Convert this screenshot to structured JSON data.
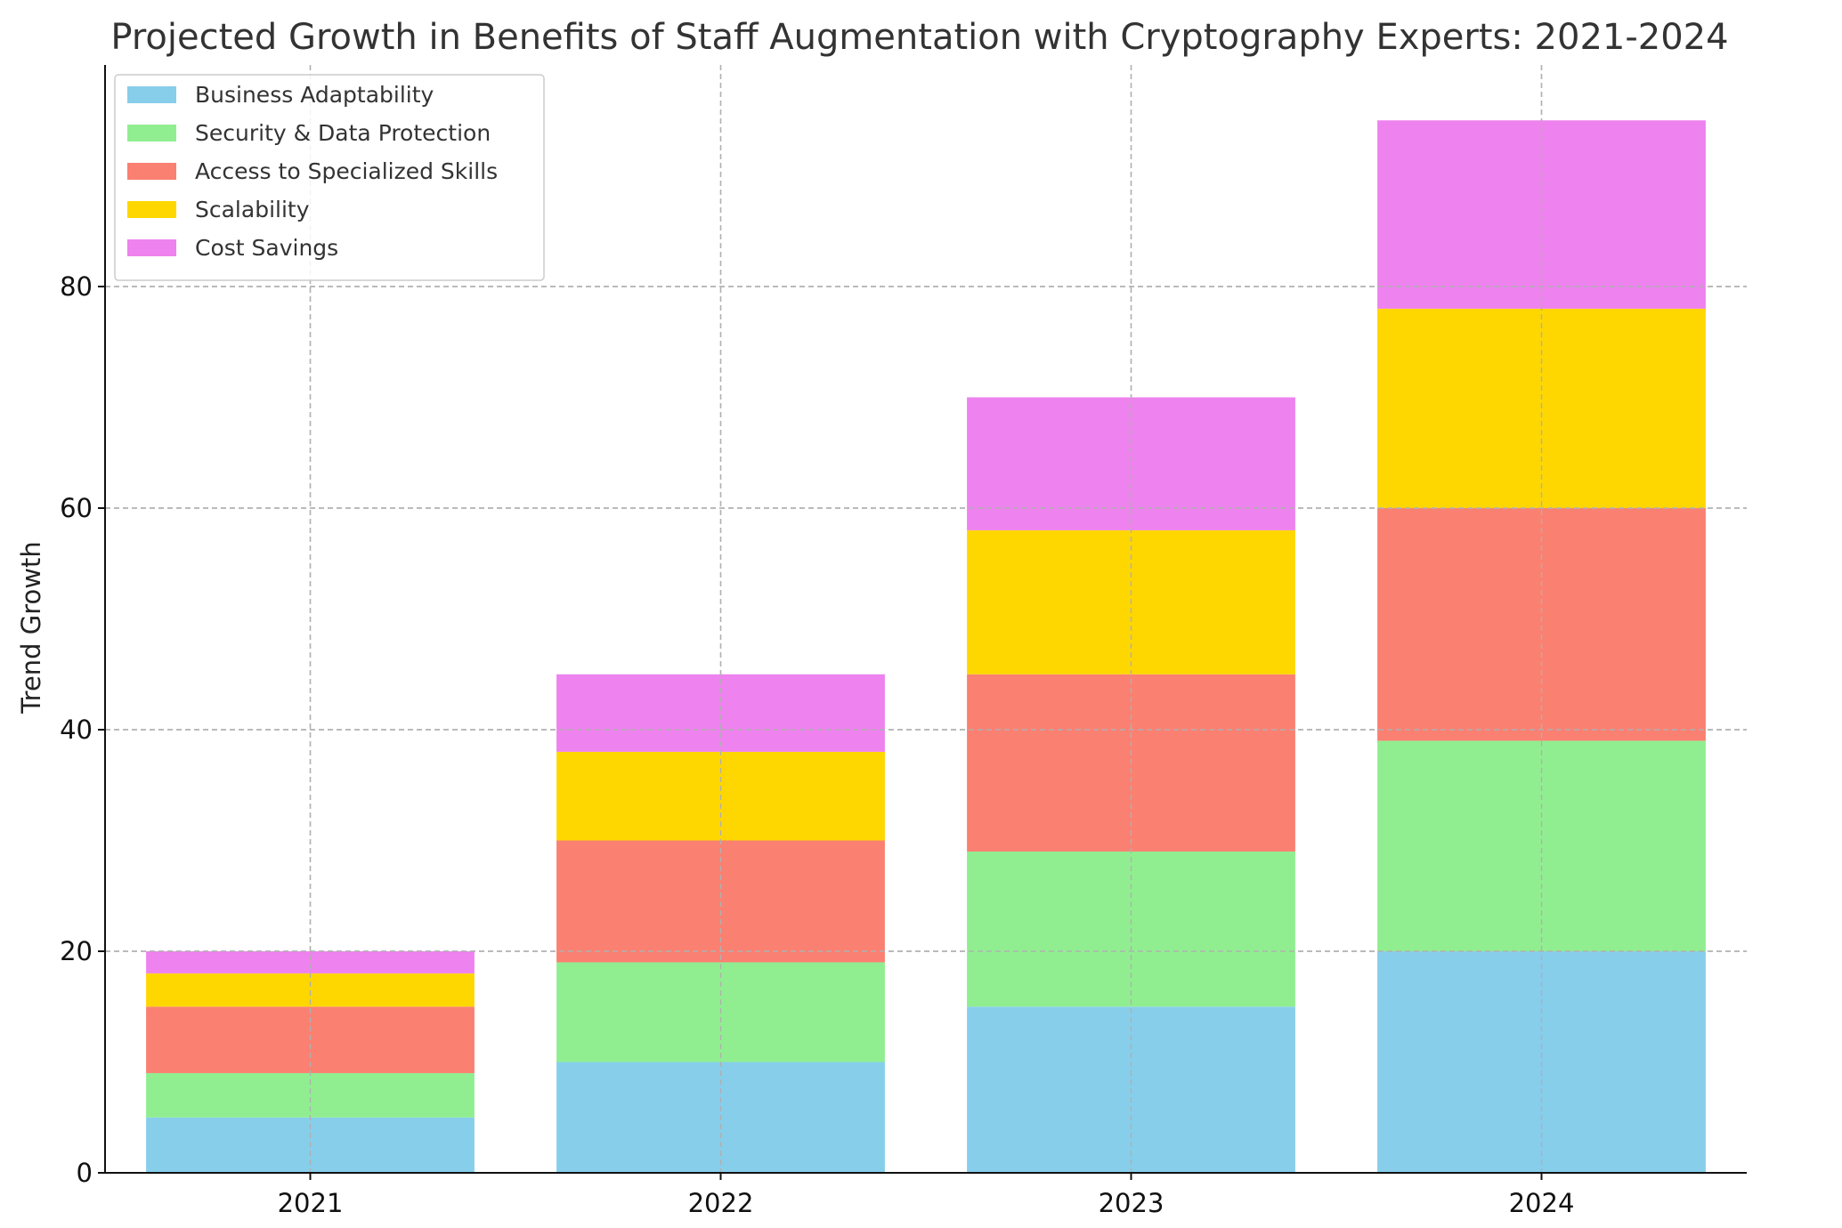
{
  "chart_data": {
    "type": "bar",
    "stacked": true,
    "title": "Projected Growth in Benefits of Staff Augmentation with Cryptography Experts: 2021-2024",
    "xlabel": "",
    "ylabel": "Trend Growth",
    "categories": [
      "2021",
      "2022",
      "2023",
      "2024"
    ],
    "ylim": [
      0,
      100
    ],
    "yticks": [
      0,
      20,
      40,
      60,
      80
    ],
    "grid": true,
    "legend_position": "top-left",
    "series": [
      {
        "name": "Business Adaptability",
        "color": "#87ceeb",
        "values": [
          5,
          10,
          15,
          20
        ]
      },
      {
        "name": "Security & Data Protection",
        "color": "#90ee90",
        "values": [
          4,
          9,
          14,
          19
        ]
      },
      {
        "name": "Access to Specialized Skills",
        "color": "#fa8072",
        "values": [
          6,
          11,
          16,
          21
        ]
      },
      {
        "name": "Scalability",
        "color": "#ffd700",
        "values": [
          3,
          8,
          13,
          18
        ]
      },
      {
        "name": "Cost Savings",
        "color": "#ee82ee",
        "values": [
          2,
          7,
          12,
          17
        ]
      }
    ]
  }
}
